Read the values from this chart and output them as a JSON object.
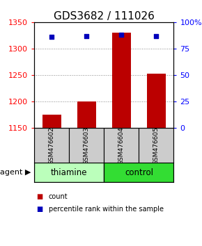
{
  "title": "GDS3682 / 111026",
  "samples": [
    "GSM476602",
    "GSM476603",
    "GSM476604",
    "GSM476605"
  ],
  "bar_values": [
    1175,
    1200,
    1330,
    1253
  ],
  "dot_values": [
    86,
    87,
    88,
    87
  ],
  "ylim_left": [
    1150,
    1350
  ],
  "ylim_right": [
    0,
    100
  ],
  "yticks_left": [
    1150,
    1200,
    1250,
    1300,
    1350
  ],
  "yticks_right": [
    0,
    25,
    50,
    75,
    100
  ],
  "ytick_labels_right": [
    "0",
    "25",
    "50",
    "75",
    "100%"
  ],
  "bar_color": "#bb0000",
  "dot_color": "#0000bb",
  "groups": [
    {
      "label": "thiamine",
      "samples": [
        0,
        1
      ],
      "color": "#bbffbb"
    },
    {
      "label": "control",
      "samples": [
        2,
        3
      ],
      "color": "#33dd33"
    }
  ],
  "sample_box_color": "#cccccc",
  "grid_color": "#888888",
  "agent_label": "agent",
  "legend_count": "count",
  "legend_percentile": "percentile rank within the sample",
  "title_fontsize": 11,
  "axis_fontsize": 8,
  "tick_fontsize": 8,
  "label_fontsize": 8.5
}
